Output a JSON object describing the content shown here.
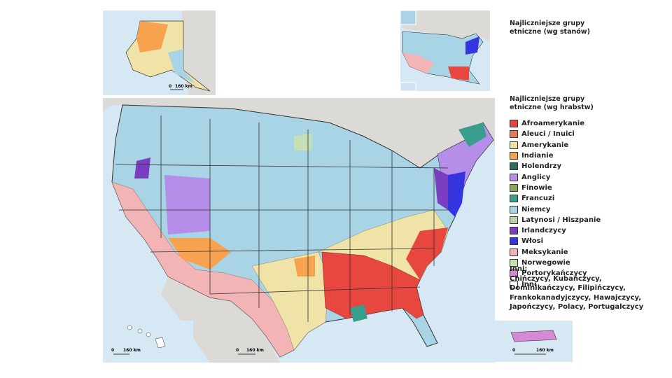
{
  "legend_states": {
    "title": "Najliczniejsze grupy etniczne (wg stanów)"
  },
  "legend_counties": {
    "title": "Najliczniejsze grupy etniczne (wg hrabstw)",
    "items": [
      {
        "label": "Afroamerykanie",
        "color": "#e8473f"
      },
      {
        "label": "Aleuci / Inuici",
        "color": "#e87a5a"
      },
      {
        "label": "Amerykanie",
        "color": "#efe3a8"
      },
      {
        "label": "Indianie",
        "color": "#f7a24f"
      },
      {
        "label": "Holendrzy",
        "color": "#2a6e5c"
      },
      {
        "label": "Anglicy",
        "color": "#b48ee8"
      },
      {
        "label": "Finowie",
        "color": "#86a85a"
      },
      {
        "label": "Francuzi",
        "color": "#3a9e8e"
      },
      {
        "label": "Niemcy",
        "color": "#a8d4e6"
      },
      {
        "label": "Latynosi / Hiszpanie",
        "color": "#b9d4a8"
      },
      {
        "label": "Irlandczycy",
        "color": "#7a3fc0"
      },
      {
        "label": "Włosi",
        "color": "#3535e0"
      },
      {
        "label": "Meksykanie",
        "color": "#f2b4b4"
      },
      {
        "label": "Norwegowie",
        "color": "#c4e0b4"
      },
      {
        "label": "Portorykańczycy",
        "color": "#d68ad6"
      },
      {
        "label": "Inni",
        "color": "#ffffff"
      }
    ]
  },
  "other_note": {
    "label": "Inni:",
    "text": "Chińczycy, Kubańczycy, Dominikańczycy, Filipińczycy, Frankokanadyjczycy, Hawajczycy, Japończycy, Polacy, Portugalczycy"
  },
  "scales": [
    {
      "zero": "0",
      "distance": "160 km"
    },
    {
      "zero": "0",
      "distance": "160 km"
    },
    {
      "zero": "0",
      "distance": "160 km"
    },
    {
      "zero": "0",
      "distance": "160 km"
    }
  ]
}
